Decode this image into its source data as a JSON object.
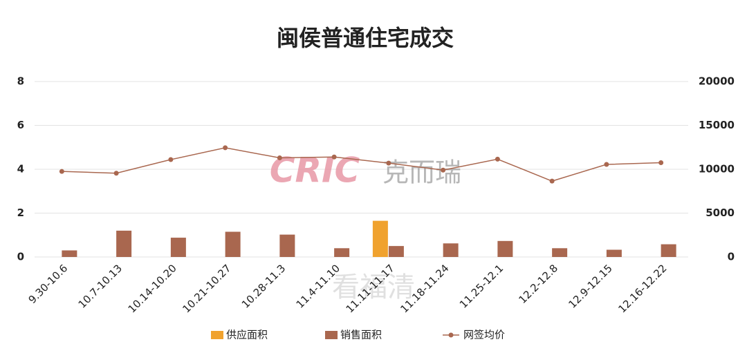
{
  "chart_data": {
    "type": "bar-line",
    "title": "闽侯普通住宅成交",
    "watermarks": [
      "CRIC",
      "克而瑞",
      "看福清"
    ],
    "categories": [
      "9.30-10.6",
      "10.7-10.13",
      "10.14-10.20",
      "10.21-10.27",
      "10.28-11.3",
      "11.4-11.10",
      "11.11-11.17",
      "11.18-11.24",
      "11.25-12.1",
      "12.2-12.8",
      "12.9-12.15",
      "12.16-12.22"
    ],
    "series": [
      {
        "name": "供应面积",
        "color": "#f0a22e",
        "kind": "bar",
        "values": [
          null,
          null,
          null,
          null,
          null,
          null,
          1.65,
          null,
          null,
          null,
          null,
          null
        ]
      },
      {
        "name": "销售面积",
        "color": "#a9674f",
        "kind": "bar",
        "values": [
          0.3,
          1.2,
          0.88,
          1.15,
          1.02,
          0.4,
          0.5,
          0.62,
          0.73,
          0.4,
          0.33,
          0.58
        ]
      },
      {
        "name": "网签均价",
        "color": "#a9674f",
        "kind": "line",
        "axis": "y2",
        "values": [
          9750,
          9550,
          11100,
          12450,
          11300,
          11400,
          10700,
          9900,
          11150,
          8650,
          10550,
          10750
        ]
      }
    ],
    "ylim": [
      0,
      8
    ],
    "yticks": [
      0,
      2,
      4,
      6,
      8
    ],
    "y2lim": [
      0,
      20000
    ],
    "y2ticks": [
      0,
      5000,
      10000,
      15000,
      20000
    ],
    "grid": true,
    "legend": "bottom"
  }
}
